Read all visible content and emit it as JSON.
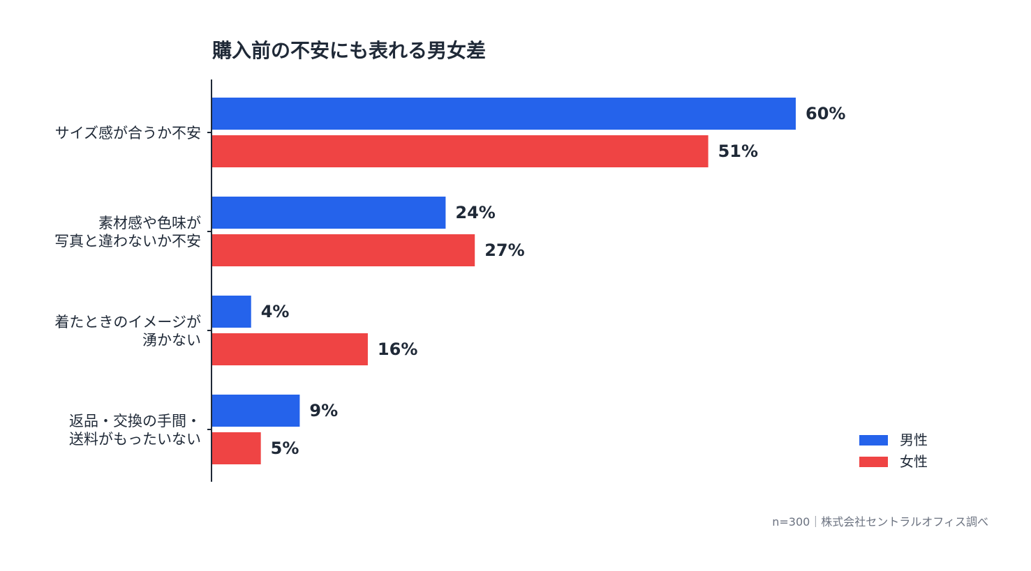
{
  "chart_data": {
    "type": "bar",
    "orientation": "horizontal",
    "title": "購入前の不安にも表れる男女差",
    "categories": [
      [
        "サイズ感が合うか不安"
      ],
      [
        "素材感や色味が",
        "写真と違わないか不安"
      ],
      [
        "着たときのイメージが",
        "湧かない"
      ],
      [
        "返品・交換の手間・",
        "送料がもったいない"
      ]
    ],
    "series": [
      {
        "name": "男性",
        "color": "#2563eb",
        "values": [
          60,
          24,
          4,
          9
        ]
      },
      {
        "name": "女性",
        "color": "#ef4444",
        "values": [
          51,
          27,
          16,
          5
        ]
      }
    ],
    "value_suffix": "%",
    "xlim": [
      0,
      60
    ],
    "grid": false,
    "legend_position": "bottom-right",
    "footnote": "n=300｜株式会社セントラルオフィス調べ"
  }
}
